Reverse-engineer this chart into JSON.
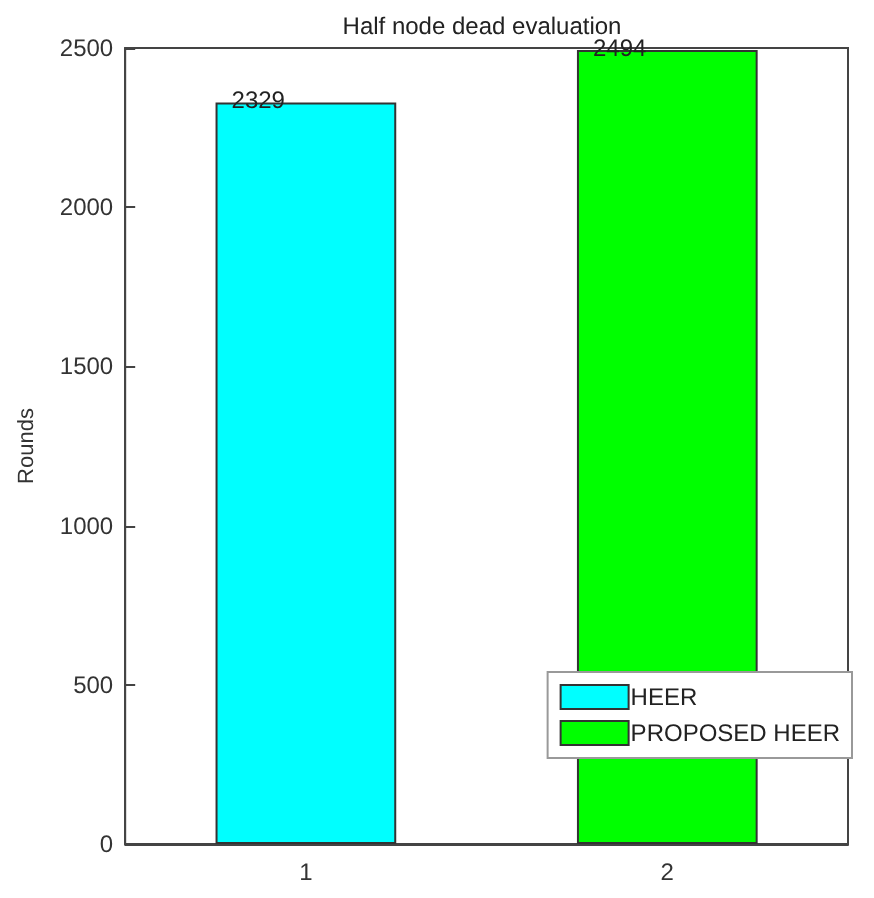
{
  "chart_data": {
    "type": "bar",
    "title": "Half node dead evaluation",
    "ylabel": "Rounds",
    "categories": [
      "1",
      "2"
    ],
    "series": [
      {
        "name": "HEER",
        "color": "#00ffff",
        "values": [
          2329,
          null
        ]
      },
      {
        "name": "PROPOSED HEER",
        "color": "#00ff00",
        "values": [
          null,
          2494
        ]
      }
    ],
    "ylim": [
      0,
      2500
    ],
    "yticks": [
      0,
      500,
      1000,
      1500,
      2000,
      2500
    ],
    "data_labels": true,
    "legend": "bottom right",
    "grid": false
  }
}
